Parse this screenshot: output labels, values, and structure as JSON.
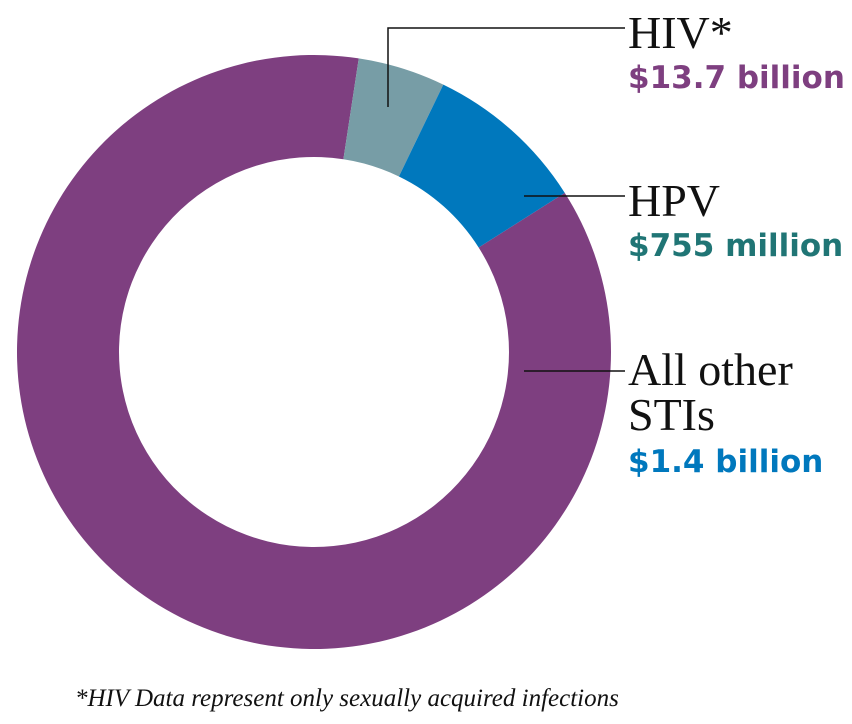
{
  "chart_data": {
    "type": "pie",
    "style": "donut",
    "categories": [
      "HIV*",
      "HPV",
      "All other STIs"
    ],
    "values": [
      13.7,
      0.755,
      1.4
    ],
    "units": [
      "billion",
      "million",
      "billion"
    ],
    "value_labels": [
      "$13.7 billion",
      "$755 million",
      "$1.4 billion"
    ],
    "label_lines": [
      [
        "HIV*"
      ],
      [
        "HPV"
      ],
      [
        "All other",
        "STIs"
      ]
    ],
    "colors": [
      "#7e3f80",
      "#779da6",
      "#0078bd"
    ],
    "value_colors": [
      "#7e3f80",
      "#207575",
      "#0078bd"
    ],
    "footnote": "*HIV Data represent only sexually acquired infections"
  }
}
